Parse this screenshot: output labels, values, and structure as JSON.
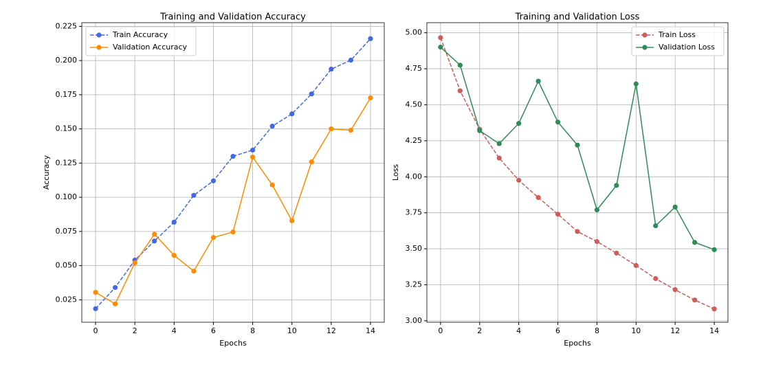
{
  "chart_data": [
    {
      "type": "line",
      "title": "Training and Validation Accuracy",
      "x_label": "Epochs",
      "y_label": "Accuracy",
      "x": [
        0,
        1,
        2,
        3,
        4,
        5,
        6,
        7,
        8,
        9,
        10,
        11,
        12,
        13,
        14
      ],
      "series": [
        {
          "name": "Train Accuracy",
          "color": "#4169e1",
          "linestyle": "dashed",
          "values": [
            0.0185,
            0.034,
            0.054,
            0.068,
            0.0818,
            0.1014,
            0.112,
            0.13,
            0.1345,
            0.152,
            0.161,
            0.1756,
            0.1937,
            0.2003,
            0.216
          ]
        },
        {
          "name": "Validation Accuracy",
          "color": "#ff8c00",
          "linestyle": "solid",
          "values": [
            0.0305,
            0.022,
            0.052,
            0.073,
            0.0575,
            0.046,
            0.0706,
            0.0746,
            0.1294,
            0.109,
            0.0828,
            0.1259,
            0.15,
            0.149,
            0.1727
          ]
        }
      ],
      "xlim": [
        -0.7,
        14.7
      ],
      "xticks": [
        0,
        2,
        4,
        6,
        8,
        10,
        12,
        14
      ],
      "ylim": [
        0.0086,
        0.2277
      ],
      "yticks": [
        0.025,
        {
          "value": 0.05,
          "label": "0.050"
        },
        0.075,
        {
          "value": 0.1,
          "label": "0.100"
        },
        0.125,
        {
          "value": 0.15,
          "label": "0.150"
        },
        0.175,
        {
          "value": 0.2,
          "label": "0.200"
        },
        0.225
      ],
      "grid": true,
      "legend": "upper left"
    },
    {
      "type": "line",
      "title": "Training and Validation Loss",
      "x_label": "Epochs",
      "y_label": "Loss",
      "x": [
        0,
        1,
        2,
        3,
        4,
        5,
        6,
        7,
        8,
        9,
        10,
        11,
        12,
        13,
        14
      ],
      "series": [
        {
          "name": "Train Loss",
          "color": "#cd5c5c",
          "linestyle": "dashed",
          "values": [
            4.966,
            4.597,
            4.33,
            4.13,
            3.976,
            3.856,
            3.74,
            3.62,
            3.55,
            3.47,
            3.384,
            3.293,
            3.216,
            3.144,
            3.082
          ]
        },
        {
          "name": "Validation Loss",
          "color": "#2e8b57",
          "linestyle": "solid",
          "values": [
            4.9,
            4.775,
            4.32,
            4.23,
            4.37,
            4.664,
            4.38,
            4.22,
            3.77,
            3.94,
            4.645,
            3.66,
            3.79,
            3.544,
            3.494
          ]
        }
      ],
      "xlim": [
        -0.7,
        14.7
      ],
      "xticks": [
        0,
        2,
        4,
        6,
        8,
        10,
        12,
        14
      ],
      "ylim": [
        2.99,
        5.07
      ],
      "yticks": [
        {
          "value": 3,
          "label": "3.00"
        },
        3.25,
        {
          "value": 3.5,
          "label": "3.50"
        },
        3.75,
        {
          "value": 4,
          "label": "4.00"
        },
        4.25,
        {
          "value": 4.5,
          "label": "4.50"
        },
        4.75,
        {
          "value": 5,
          "label": "5.00"
        }
      ],
      "grid": true,
      "legend": "upper right"
    }
  ]
}
